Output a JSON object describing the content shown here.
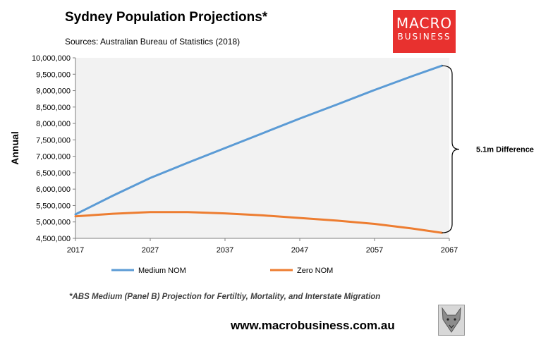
{
  "header": {
    "title": "Sydney Population Projections*",
    "subtitle": "Sources: Australian Bureau of Statistics (2018)"
  },
  "logo": {
    "line1": "MACRO",
    "line2": "BUSINESS",
    "color": "#e8312f"
  },
  "footer": {
    "footnote": "*ABS Medium (Panel B) Projection for Fertiltiy, Mortality, and Interstate Migration",
    "url": "www.macrobusiness.com.au",
    "emblem_icon": "wolf-emblem-icon"
  },
  "chart_data": {
    "type": "line",
    "ylabel": "Annual",
    "xlabel": "",
    "xlim": [
      2017,
      2067
    ],
    "ylim": [
      4500000,
      10000000
    ],
    "x_ticks": [
      2017,
      2027,
      2037,
      2047,
      2057,
      2067
    ],
    "y_ticks": [
      4500000,
      5000000,
      5500000,
      6000000,
      6500000,
      7000000,
      7500000,
      8000000,
      8500000,
      9000000,
      9500000,
      10000000
    ],
    "y_tick_labels": [
      "4,500,000",
      "5,000,000",
      "5,500,000",
      "6,000,000",
      "6,500,000",
      "7,000,000",
      "7,500,000",
      "8,000,000",
      "8,500,000",
      "9,000,000",
      "9,500,000",
      "10,000,000"
    ],
    "grid": false,
    "plot_background": "#f2f2f2",
    "legend_position": "bottom",
    "x": [
      2017,
      2022,
      2027,
      2032,
      2037,
      2042,
      2047,
      2052,
      2057,
      2062,
      2066
    ],
    "series": [
      {
        "name": "Medium NOM",
        "color": "#5b9bd5",
        "values": [
          5230000,
          5800000,
          6340000,
          6800000,
          7250000,
          7700000,
          8150000,
          8580000,
          9020000,
          9440000,
          9760000
        ]
      },
      {
        "name": "Zero NOM",
        "color": "#ed7d31",
        "values": [
          5170000,
          5250000,
          5300000,
          5300000,
          5260000,
          5200000,
          5120000,
          5040000,
          4940000,
          4800000,
          4670000
        ]
      }
    ],
    "annotation": {
      "text": "5.1m Difference",
      "at_x": 2066
    }
  }
}
